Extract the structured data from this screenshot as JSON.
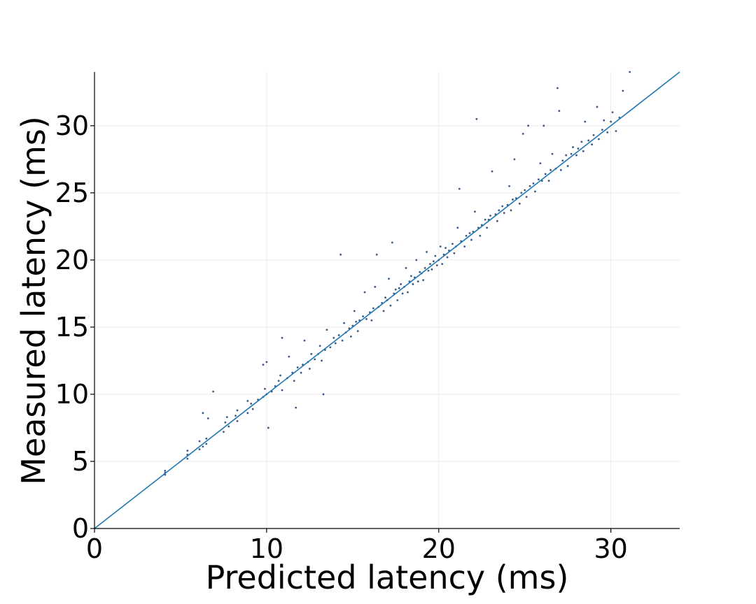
{
  "chart_data": {
    "type": "scatter",
    "title": "",
    "xlabel": "Predicted latency (ms)",
    "ylabel": "Measured latency (ms)",
    "xlim": [
      0,
      34
    ],
    "ylim": [
      0,
      34
    ],
    "xticks": [
      "0",
      "10",
      "20",
      "30"
    ],
    "yticks": [
      "0",
      "5",
      "10",
      "15",
      "20",
      "25",
      "30"
    ],
    "grid": true,
    "reference_line": {
      "label": "",
      "from": [
        0,
        0
      ],
      "to": [
        34,
        34
      ],
      "color": "#1f77b4"
    },
    "series": [
      {
        "color": "#3b5b85",
        "points": [
          [
            4.1,
            4.0
          ],
          [
            4.1,
            4.3
          ],
          [
            4.1,
            4.15
          ],
          [
            5.4,
            5.2
          ],
          [
            5.4,
            5.8
          ],
          [
            5.4,
            5.5
          ],
          [
            6.1,
            5.9
          ],
          [
            6.1,
            6.5
          ],
          [
            6.3,
            6.1
          ],
          [
            6.5,
            6.7
          ],
          [
            6.5,
            6.3
          ],
          [
            6.3,
            8.6
          ],
          [
            6.6,
            8.2
          ],
          [
            6.9,
            10.2
          ],
          [
            7.5,
            7.2
          ],
          [
            7.6,
            7.9
          ],
          [
            7.8,
            7.6
          ],
          [
            7.7,
            8.3
          ],
          [
            8.3,
            8.0
          ],
          [
            8.3,
            8.8
          ],
          [
            8.2,
            8.4
          ],
          [
            8.9,
            8.6
          ],
          [
            8.9,
            9.5
          ],
          [
            9.1,
            9.3
          ],
          [
            9.2,
            8.9
          ],
          [
            9.5,
            9.6
          ],
          [
            9.8,
            9.8
          ],
          [
            9.9,
            10.4
          ],
          [
            9.8,
            12.2
          ],
          [
            10.0,
            10.0
          ],
          [
            10.1,
            7.5
          ],
          [
            10.0,
            12.4
          ],
          [
            10.3,
            10.2
          ],
          [
            10.5,
            10.6
          ],
          [
            10.7,
            11.0
          ],
          [
            10.8,
            11.4
          ],
          [
            10.9,
            10.3
          ],
          [
            10.9,
            14.2
          ],
          [
            11.2,
            11.2
          ],
          [
            11.3,
            12.8
          ],
          [
            11.5,
            11.6
          ],
          [
            11.6,
            11.0
          ],
          [
            11.7,
            9.0
          ],
          [
            11.8,
            12.0
          ],
          [
            12.0,
            11.6
          ],
          [
            12.1,
            12.2
          ],
          [
            12.2,
            14.0
          ],
          [
            12.4,
            12.4
          ],
          [
            12.5,
            11.9
          ],
          [
            12.6,
            13.0
          ],
          [
            12.8,
            12.6
          ],
          [
            13.0,
            13.0
          ],
          [
            13.1,
            13.6
          ],
          [
            13.2,
            12.5
          ],
          [
            13.3,
            10.0
          ],
          [
            13.4,
            13.3
          ],
          [
            13.5,
            14.8
          ],
          [
            13.7,
            13.5
          ],
          [
            13.9,
            14.2
          ],
          [
            14.0,
            13.8
          ],
          [
            14.2,
            14.4
          ],
          [
            14.3,
            20.4
          ],
          [
            14.4,
            14.0
          ],
          [
            14.5,
            15.3
          ],
          [
            14.6,
            14.6
          ],
          [
            14.8,
            14.9
          ],
          [
            14.9,
            14.3
          ],
          [
            15.0,
            15.1
          ],
          [
            15.1,
            16.2
          ],
          [
            15.2,
            15.4
          ],
          [
            15.3,
            14.7
          ],
          [
            15.4,
            15.5
          ],
          [
            15.6,
            15.8
          ],
          [
            15.7,
            17.6
          ],
          [
            15.8,
            15.6
          ],
          [
            16.0,
            16.1
          ],
          [
            16.1,
            15.5
          ],
          [
            16.2,
            16.4
          ],
          [
            16.3,
            18.0
          ],
          [
            16.4,
            20.4
          ],
          [
            16.5,
            16.5
          ],
          [
            16.7,
            16.8
          ],
          [
            16.8,
            16.2
          ],
          [
            16.9,
            17.2
          ],
          [
            17.0,
            17.0
          ],
          [
            17.1,
            18.6
          ],
          [
            17.2,
            16.6
          ],
          [
            17.3,
            21.3
          ],
          [
            17.4,
            17.5
          ],
          [
            17.5,
            17.8
          ],
          [
            17.6,
            17.0
          ],
          [
            17.7,
            17.9
          ],
          [
            17.8,
            18.2
          ],
          [
            17.9,
            17.5
          ],
          [
            18.0,
            18.0
          ],
          [
            18.1,
            19.4
          ],
          [
            18.2,
            17.6
          ],
          [
            18.3,
            18.4
          ],
          [
            18.4,
            18.8
          ],
          [
            18.5,
            18.2
          ],
          [
            18.6,
            18.7
          ],
          [
            18.7,
            20.0
          ],
          [
            18.8,
            18.4
          ],
          [
            18.9,
            19.1
          ],
          [
            19.0,
            19.0
          ],
          [
            19.1,
            18.5
          ],
          [
            19.2,
            19.4
          ],
          [
            19.3,
            20.6
          ],
          [
            19.4,
            19.2
          ],
          [
            19.5,
            19.7
          ],
          [
            19.6,
            19.3
          ],
          [
            19.7,
            19.9
          ],
          [
            19.8,
            20.3
          ],
          [
            19.9,
            19.6
          ],
          [
            20.0,
            20.0
          ],
          [
            20.1,
            21.0
          ],
          [
            20.2,
            19.7
          ],
          [
            20.3,
            20.4
          ],
          [
            20.4,
            20.9
          ],
          [
            20.5,
            20.2
          ],
          [
            20.6,
            20.7
          ],
          [
            20.8,
            21.2
          ],
          [
            20.9,
            20.5
          ],
          [
            21.0,
            21.0
          ],
          [
            21.1,
            22.4
          ],
          [
            21.2,
            25.3
          ],
          [
            21.3,
            21.4
          ],
          [
            21.5,
            21.0
          ],
          [
            21.6,
            21.8
          ],
          [
            21.8,
            22.0
          ],
          [
            21.9,
            21.5
          ],
          [
            22.0,
            22.1
          ],
          [
            22.1,
            23.6
          ],
          [
            22.2,
            30.5
          ],
          [
            22.3,
            22.4
          ],
          [
            22.4,
            21.8
          ],
          [
            22.5,
            22.6
          ],
          [
            22.7,
            23.0
          ],
          [
            22.8,
            22.4
          ],
          [
            22.9,
            23.0
          ],
          [
            23.0,
            23.3
          ],
          [
            23.1,
            26.6
          ],
          [
            23.3,
            23.4
          ],
          [
            23.4,
            22.9
          ],
          [
            23.5,
            23.7
          ],
          [
            23.7,
            24.0
          ],
          [
            23.8,
            23.5
          ],
          [
            24.0,
            24.1
          ],
          [
            24.1,
            25.5
          ],
          [
            24.2,
            23.7
          ],
          [
            24.3,
            24.5
          ],
          [
            24.4,
            27.5
          ],
          [
            24.5,
            24.6
          ],
          [
            24.7,
            24.2
          ],
          [
            24.8,
            25.0
          ],
          [
            24.9,
            29.4
          ],
          [
            25.0,
            25.2
          ],
          [
            25.1,
            24.7
          ],
          [
            25.2,
            30.0
          ],
          [
            25.3,
            25.5
          ],
          [
            25.5,
            25.7
          ],
          [
            25.6,
            25.1
          ],
          [
            25.8,
            26.0
          ],
          [
            25.9,
            27.2
          ],
          [
            26.0,
            25.9
          ],
          [
            26.1,
            30.0
          ],
          [
            26.2,
            26.4
          ],
          [
            26.4,
            25.9
          ],
          [
            26.5,
            26.7
          ],
          [
            26.6,
            27.9
          ],
          [
            26.8,
            26.8
          ],
          [
            26.9,
            32.8
          ],
          [
            27.0,
            31.1
          ],
          [
            27.1,
            26.7
          ],
          [
            27.2,
            27.4
          ],
          [
            27.4,
            27.8
          ],
          [
            27.5,
            27.0
          ],
          [
            27.7,
            27.9
          ],
          [
            27.8,
            28.4
          ],
          [
            28.0,
            27.8
          ],
          [
            28.1,
            28.3
          ],
          [
            28.3,
            28.8
          ],
          [
            28.4,
            28.1
          ],
          [
            28.5,
            30.3
          ],
          [
            28.7,
            28.9
          ],
          [
            28.9,
            28.6
          ],
          [
            29.0,
            29.3
          ],
          [
            29.2,
            31.4
          ],
          [
            29.3,
            29.0
          ],
          [
            29.5,
            29.7
          ],
          [
            29.6,
            30.4
          ],
          [
            29.8,
            29.5
          ],
          [
            30.0,
            30.3
          ],
          [
            30.1,
            31.0
          ],
          [
            30.3,
            29.6
          ],
          [
            30.5,
            30.6
          ],
          [
            30.7,
            32.6
          ],
          [
            31.1,
            34.0
          ]
        ]
      }
    ]
  }
}
